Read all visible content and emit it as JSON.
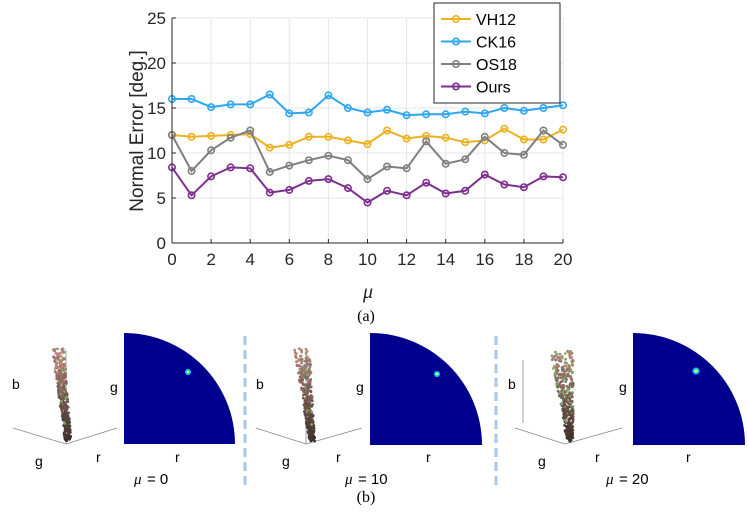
{
  "chart_data": {
    "type": "line",
    "title": "",
    "xlabel": "μ",
    "ylabel": "Normal Error [deg.]",
    "xlim": [
      0,
      20
    ],
    "ylim": [
      0,
      25
    ],
    "xticks": [
      0,
      2,
      4,
      6,
      8,
      10,
      12,
      14,
      16,
      18,
      20
    ],
    "yticks": [
      0,
      5,
      10,
      15,
      20,
      25
    ],
    "x": [
      0,
      1,
      2,
      3,
      4,
      5,
      6,
      7,
      8,
      9,
      10,
      11,
      12,
      13,
      14,
      15,
      16,
      17,
      18,
      19,
      20
    ],
    "legend_position": "top-right",
    "series": [
      {
        "name": "VH12",
        "color": "#EDB120",
        "values": [
          12.0,
          11.8,
          11.9,
          12.0,
          12.1,
          10.6,
          10.9,
          11.8,
          11.8,
          11.4,
          11.0,
          12.5,
          11.6,
          11.9,
          11.7,
          11.2,
          11.4,
          12.7,
          11.5,
          11.5,
          12.6
        ]
      },
      {
        "name": "CK16",
        "color": "#2FA6F0",
        "values": [
          16.0,
          16.0,
          15.1,
          15.4,
          15.4,
          16.5,
          14.4,
          14.5,
          16.4,
          15.0,
          14.5,
          14.8,
          14.2,
          14.3,
          14.3,
          14.6,
          14.4,
          15.0,
          14.7,
          15.0,
          15.3
        ]
      },
      {
        "name": "OS18",
        "color": "#7F7F7F",
        "values": [
          12.0,
          8.0,
          10.3,
          11.7,
          12.5,
          7.9,
          8.6,
          9.2,
          9.7,
          9.2,
          7.1,
          8.5,
          8.3,
          11.3,
          8.8,
          9.3,
          11.8,
          10.0,
          9.8,
          12.5,
          10.9
        ]
      },
      {
        "name": "Ours",
        "color": "#7E2F8E",
        "values": [
          8.4,
          5.3,
          7.4,
          8.4,
          8.3,
          5.6,
          5.9,
          6.9,
          7.1,
          6.1,
          4.5,
          5.8,
          5.3,
          6.7,
          5.5,
          5.8,
          7.6,
          6.5,
          6.2,
          7.4,
          7.3
        ]
      }
    ]
  },
  "caption_a": "(a)",
  "caption_b": "(b)",
  "panels": [
    {
      "axis_r": "r",
      "axis_g": "g",
      "axis_b": "b",
      "map_g": "g",
      "map_r": "r",
      "mu_symbol": "μ",
      "mu_value": "= 0"
    },
    {
      "axis_r": "r",
      "axis_g": "g",
      "axis_b": "b",
      "map_g": "g",
      "map_r": "r",
      "mu_symbol": "μ",
      "mu_value": "= 10"
    },
    {
      "axis_r": "r",
      "axis_g": "g",
      "axis_b": "b",
      "map_g": "g",
      "map_r": "r",
      "mu_symbol": "μ",
      "mu_value": "= 20"
    }
  ],
  "colors": {
    "map_fill": "#00008F",
    "separator": "#A7C7E7",
    "axis": "#262626",
    "grid": "#E6E6E6"
  }
}
